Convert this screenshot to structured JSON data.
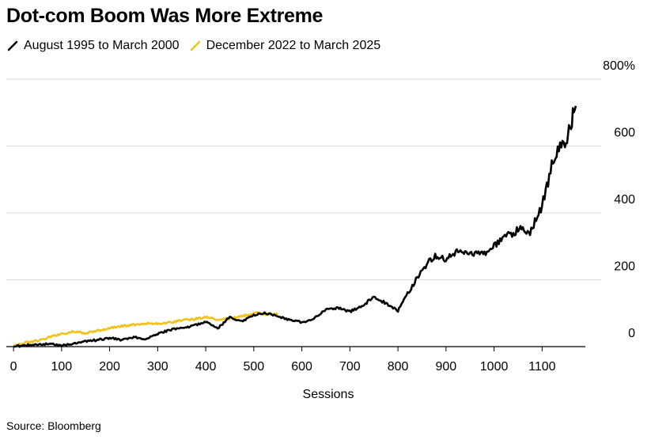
{
  "title": "Dot-com Boom Was More Extreme",
  "source": "Source: Bloomberg",
  "colors": {
    "series_dotcom": "#000000",
    "series_recent": "#f2c21b",
    "grid": "#d9d9d9",
    "axis": "#000000"
  },
  "chart_data": {
    "type": "line",
    "title": "Dot-com Boom Was More Extreme",
    "xlabel": "Sessions",
    "ylabel": "",
    "xlim": [
      -15,
      1190
    ],
    "ylim": [
      0,
      800
    ],
    "x_ticks": [
      0,
      100,
      200,
      300,
      400,
      500,
      600,
      700,
      800,
      900,
      1000,
      1100
    ],
    "x_tick_labels": [
      "0",
      "100",
      "200",
      "300",
      "400",
      "500",
      "600",
      "700",
      "800",
      "900",
      "1000",
      "1100"
    ],
    "y_ticks": [
      0,
      200,
      400,
      600,
      800
    ],
    "y_tick_labels": [
      "0",
      "200",
      "400",
      "600",
      "800%"
    ],
    "grid": "horizontal",
    "legend_position": "top-left",
    "series": [
      {
        "name": "August 1995 to March 2000",
        "color": "#000000",
        "x": [
          0,
          25,
          50,
          75,
          100,
          125,
          150,
          175,
          200,
          225,
          250,
          275,
          300,
          325,
          350,
          375,
          400,
          425,
          450,
          475,
          500,
          525,
          550,
          575,
          600,
          625,
          650,
          675,
          700,
          725,
          750,
          775,
          800,
          825,
          850,
          875,
          900,
          925,
          950,
          975,
          1000,
          1025,
          1050,
          1075,
          1100,
          1125,
          1150,
          1170
        ],
        "y": [
          0,
          4,
          6,
          8,
          3,
          8,
          15,
          20,
          26,
          20,
          28,
          22,
          38,
          50,
          55,
          62,
          75,
          55,
          88,
          75,
          95,
          100,
          90,
          80,
          72,
          85,
          110,
          115,
          105,
          120,
          150,
          130,
          108,
          170,
          230,
          270,
          260,
          290,
          280,
          275,
          300,
          330,
          350,
          345,
          420,
          570,
          620,
          720
        ]
      },
      {
        "name": "December 2022 to March 2025",
        "color": "#f2c21b",
        "x": [
          0,
          25,
          50,
          75,
          100,
          125,
          150,
          175,
          200,
          225,
          250,
          275,
          300,
          325,
          350,
          375,
          400,
          425,
          450,
          475,
          500,
          525,
          550
        ],
        "y": [
          2,
          12,
          18,
          28,
          38,
          45,
          40,
          48,
          55,
          62,
          65,
          70,
          68,
          72,
          78,
          82,
          88,
          80,
          85,
          92,
          100,
          98,
          96
        ]
      }
    ]
  }
}
